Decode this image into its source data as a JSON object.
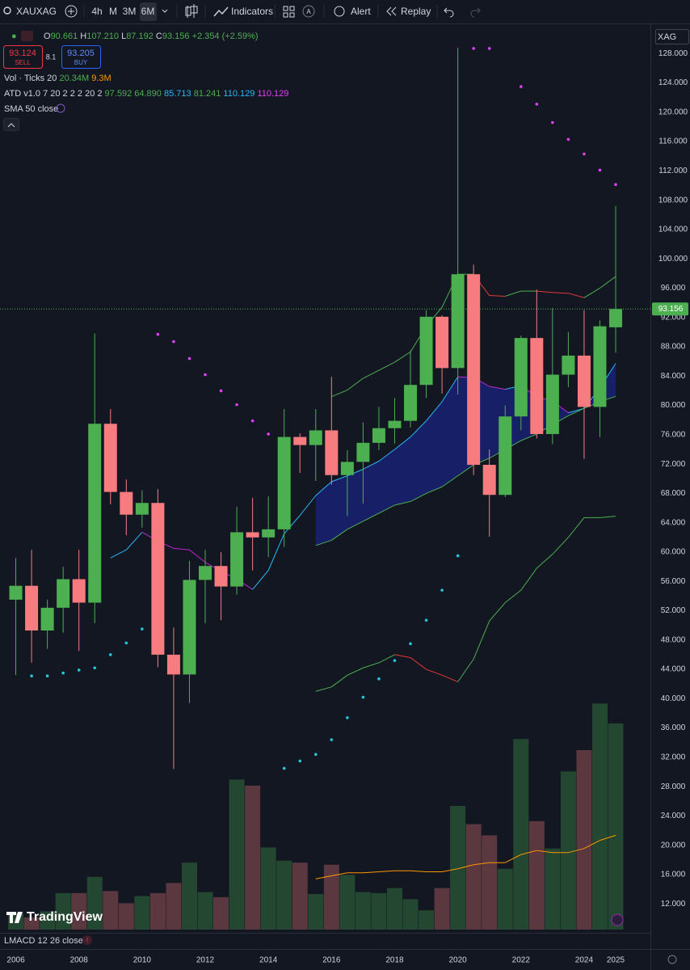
{
  "toolbar": {
    "symbol": "XAUXAG",
    "intervals": [
      "4h",
      "M",
      "3M",
      "6M"
    ],
    "badge": "A",
    "indicators": "Indicators",
    "alert": "Alert",
    "replay": "Replay"
  },
  "legend": {
    "ohlc": [
      {
        "key": "O",
        "value": "90.661"
      },
      {
        "key": "H",
        "value": "107.210"
      },
      {
        "key": "L",
        "value": "87.192"
      },
      {
        "key": "C",
        "value": "93.156"
      }
    ],
    "change": "+2.354 (+2.59%)",
    "sell_price": "93.124",
    "sell": "SELL",
    "spread": "8.1",
    "buy_price": "93.205",
    "buy": "BUY",
    "volume": {
      "name": "Vol · Ticks 20",
      "values": [
        {
          "text": "20.34M",
          "color": "#4caf50"
        },
        {
          "text": "9.3M",
          "color": "#ff9800"
        }
      ]
    },
    "atd": {
      "name": "ATD v1.0 7 20 2 2 2 20 2",
      "values": [
        {
          "text": "97.592",
          "color": "#4caf50"
        },
        {
          "text": "64.890",
          "color": "#4caf50"
        },
        {
          "text": "85.713",
          "color": "#29b6f6"
        },
        {
          "text": "81.241",
          "color": "#4caf50"
        },
        {
          "text": "110.129",
          "color": "#29b6f6"
        },
        {
          "text": "110.129",
          "color": "#e040fb"
        }
      ]
    },
    "sma": "SMA 50 close"
  },
  "chart_data": {
    "type": "candlestick",
    "axis_title": "XAG",
    "last_price_label": "93.156",
    "up_color": "#4caf50",
    "down_color": "#f77c80",
    "volume_up_color": "rgba(76,175,80,0.32)",
    "volume_down_color": "rgba(247,124,128,0.32)",
    "cloud_color": "rgba(26,35,126,0.75)",
    "x": [
      2006,
      2006.5,
      2007,
      2007.5,
      2008,
      2008.5,
      2009,
      2009.5,
      2010,
      2010.5,
      2011,
      2011.5,
      2012,
      2012.5,
      2013,
      2013.5,
      2014,
      2014.5,
      2015,
      2015.5,
      2016,
      2016.5,
      2017,
      2017.5,
      2018,
      2018.5,
      2019,
      2019.5,
      2020,
      2020.5,
      2021,
      2021.5,
      2022,
      2022.5,
      2023,
      2023.5,
      2024,
      2024.5,
      2025
    ],
    "open": [
      53.5,
      55.4,
      49.3,
      52.4,
      56.3,
      53.1,
      77.5,
      68.2,
      65.1,
      66.7,
      46.0,
      43.3,
      56.2,
      58.1,
      55.3,
      62.7,
      62.0,
      63.1,
      75.7,
      74.6,
      76.6,
      70.5,
      72.3,
      74.9,
      76.9,
      77.9,
      82.8,
      92.1,
      85.1,
      97.9,
      71.9,
      67.8,
      78.5,
      89.2,
      76.1,
      84.2,
      86.8,
      79.8,
      90.661
    ],
    "high": [
      59.2,
      60.3,
      53.5,
      58.0,
      60.3,
      89.8,
      79.5,
      69.9,
      68.4,
      68.6,
      49.7,
      58.8,
      60.3,
      60.0,
      66.2,
      67.4,
      67.6,
      79.5,
      76.2,
      79.5,
      83.9,
      73.9,
      77.7,
      79.8,
      81.0,
      87.5,
      93.0,
      92.3,
      128.8,
      99.2,
      74.0,
      80.0,
      89.5,
      95.8,
      93.3,
      90.0,
      93.0,
      91.6,
      107.21
    ],
    "low": [
      43.2,
      44.9,
      46.8,
      49.0,
      46.5,
      50.3,
      66.5,
      62.3,
      63.3,
      44.3,
      30.4,
      39.4,
      50.3,
      50.7,
      54.2,
      57.5,
      59.3,
      60.7,
      70.8,
      69.7,
      69.2,
      64.9,
      66.6,
      73.9,
      74.8,
      77.0,
      81.0,
      81.6,
      81.5,
      70.5,
      62.1,
      67.5,
      76.6,
      75.5,
      74.7,
      82.5,
      72.7,
      75.7,
      87.192
    ],
    "close": [
      55.4,
      49.3,
      52.4,
      56.3,
      53.1,
      77.5,
      68.2,
      65.1,
      66.7,
      46.0,
      43.3,
      56.2,
      58.1,
      55.3,
      62.7,
      62.0,
      63.1,
      75.7,
      74.6,
      76.6,
      70.5,
      72.3,
      74.9,
      76.9,
      77.9,
      82.8,
      92.1,
      85.1,
      97.9,
      71.9,
      67.8,
      78.5,
      89.2,
      76.1,
      84.2,
      86.8,
      79.8,
      90.8,
      93.156
    ],
    "volume": [
      1.6,
      1.2,
      1.8,
      3.6,
      3.6,
      5.2,
      3.8,
      2.6,
      3.3,
      3.6,
      4.6,
      6.6,
      3.7,
      3.2,
      14.8,
      14.2,
      8.1,
      6.8,
      6.6,
      3.5,
      6.4,
      5.4,
      3.7,
      3.6,
      4.1,
      3.0,
      1.9,
      4.1,
      12.2,
      10.4,
      9.3,
      6.0,
      18.8,
      10.7,
      8.0,
      15.6,
      17.7,
      22.3,
      20.34
    ],
    "volume_ma": {
      "color": "#ff9800",
      "values": [
        null,
        null,
        null,
        null,
        null,
        null,
        null,
        null,
        null,
        null,
        null,
        null,
        null,
        null,
        null,
        null,
        null,
        null,
        null,
        5.0,
        5.3,
        5.6,
        5.6,
        5.7,
        5.8,
        5.8,
        5.7,
        5.7,
        6.0,
        6.4,
        6.6,
        6.6,
        7.4,
        7.8,
        7.6,
        7.6,
        8.0,
        8.8,
        9.3
      ]
    },
    "lines": [
      {
        "color": "#29b6f6",
        "falling_color": "#c026d3",
        "values": [
          null,
          null,
          null,
          null,
          null,
          null,
          59.2,
          60.3,
          62.7,
          61.5,
          60.5,
          60.3,
          58.6,
          57.4,
          56.3,
          54.9,
          57.5,
          62.5,
          65.0,
          67.7,
          69.6,
          70.4,
          71.3,
          72.4,
          74.0,
          75.7,
          77.9,
          80.5,
          83.9,
          83.8,
          82.6,
          82.2,
          82.7,
          81.2,
          80.6,
          79.0,
          79.6,
          82.4,
          85.713
        ]
      },
      {
        "color": "#4caf50",
        "falling_color": "#e53935",
        "values": [
          null,
          null,
          null,
          null,
          null,
          null,
          null,
          null,
          null,
          null,
          null,
          null,
          null,
          null,
          null,
          null,
          null,
          null,
          null,
          null,
          81.2,
          82.1,
          83.7,
          84.8,
          85.9,
          87.3,
          90.8,
          93.4,
          97.9,
          97.9,
          95.0,
          94.9,
          95.6,
          95.6,
          95.4,
          95.3,
          94.7,
          96.0,
          97.592
        ]
      },
      {
        "color": "#4caf50",
        "falling_color": "#e53935",
        "values": [
          null,
          null,
          null,
          null,
          null,
          null,
          null,
          null,
          null,
          null,
          null,
          null,
          null,
          null,
          null,
          null,
          null,
          null,
          null,
          60.9,
          61.6,
          63.1,
          64.2,
          65.3,
          66.4,
          66.9,
          68.0,
          68.9,
          70.4,
          71.9,
          72.8,
          74.0,
          75.2,
          76.1,
          77.4,
          78.6,
          79.6,
          80.5,
          81.241
        ]
      },
      {
        "color": "#4caf50",
        "falling_color": "#e53935",
        "values": [
          null,
          null,
          null,
          null,
          null,
          null,
          null,
          null,
          null,
          null,
          null,
          null,
          null,
          null,
          null,
          null,
          null,
          null,
          null,
          41.0,
          41.6,
          43.2,
          44.2,
          44.9,
          46.0,
          45.6,
          44.0,
          43.2,
          42.3,
          45.4,
          50.6,
          53.1,
          54.8,
          57.8,
          59.7,
          62.0,
          64.7,
          64.7,
          64.89
        ]
      }
    ],
    "dots": [
      {
        "color": "#26c6da",
        "values": [
          null,
          43.1,
          43.1,
          43.5,
          43.9,
          44.2,
          46.0,
          47.6,
          49.5,
          null,
          null,
          null,
          null,
          null,
          null,
          null,
          null,
          30.5,
          31.5,
          32.4,
          34.4,
          37.4,
          40.2,
          42.7,
          45.2,
          47.5,
          50.7,
          54.8,
          59.5,
          null,
          null,
          null,
          null,
          null,
          null,
          null,
          null,
          null,
          null
        ]
      },
      {
        "color": "#e040fb",
        "values": [
          null,
          null,
          null,
          null,
          null,
          null,
          null,
          null,
          null,
          89.7,
          88.7,
          86.4,
          84.2,
          82.0,
          80.1,
          77.9,
          76.1,
          null,
          null,
          null,
          null,
          null,
          null,
          null,
          null,
          null,
          null,
          null,
          null,
          128.7,
          128.7,
          null,
          123.5,
          121.1,
          118.6,
          116.3,
          114.3,
          112.1,
          110.129
        ]
      }
    ],
    "xlim": [
      2005.5,
      2026.1
    ],
    "xticks": [
      2006,
      2008,
      2010,
      2012,
      2014,
      2016,
      2018,
      2020,
      2022,
      2024,
      2025
    ],
    "ylim": [
      8.5,
      132
    ],
    "yticks": [
      {
        "value": 12,
        "label": "12.000"
      },
      {
        "value": 16,
        "label": "16.000"
      },
      {
        "value": 20,
        "label": "20.000"
      },
      {
        "value": 24,
        "label": "24.000"
      },
      {
        "value": 28,
        "label": "28.000"
      },
      {
        "value": 32,
        "label": "32.000"
      },
      {
        "value": 36,
        "label": "36.000"
      },
      {
        "value": 40,
        "label": "40.000"
      },
      {
        "value": 44,
        "label": "44.000"
      },
      {
        "value": 48,
        "label": "48.000"
      },
      {
        "value": 52,
        "label": "52.000"
      },
      {
        "value": 56,
        "label": "56.000"
      },
      {
        "value": 60,
        "label": "60.000"
      },
      {
        "value": 64,
        "label": "64.000"
      },
      {
        "value": 68,
        "label": "68.000"
      },
      {
        "value": 72,
        "label": "72.000"
      },
      {
        "value": 76,
        "label": "76.000"
      },
      {
        "value": 80,
        "label": "80.000"
      },
      {
        "value": 84,
        "label": "84.000"
      },
      {
        "value": 88,
        "label": "88.000"
      },
      {
        "value": 92,
        "label": "92.000"
      },
      {
        "value": 96,
        "label": "96.000"
      },
      {
        "value": 100,
        "label": "100.000"
      },
      {
        "value": 104,
        "label": "104.000"
      },
      {
        "value": 108,
        "label": "108.000"
      },
      {
        "value": 112,
        "label": "112.000"
      },
      {
        "value": 116,
        "label": "116.000"
      },
      {
        "value": 120,
        "label": "120.000"
      },
      {
        "value": 124,
        "label": "124.000"
      },
      {
        "value": 128,
        "label": "128.000"
      }
    ],
    "grid": false
  },
  "footer": {
    "indicator": "LMACD 12 26 close 9",
    "logo": "TradingView"
  }
}
